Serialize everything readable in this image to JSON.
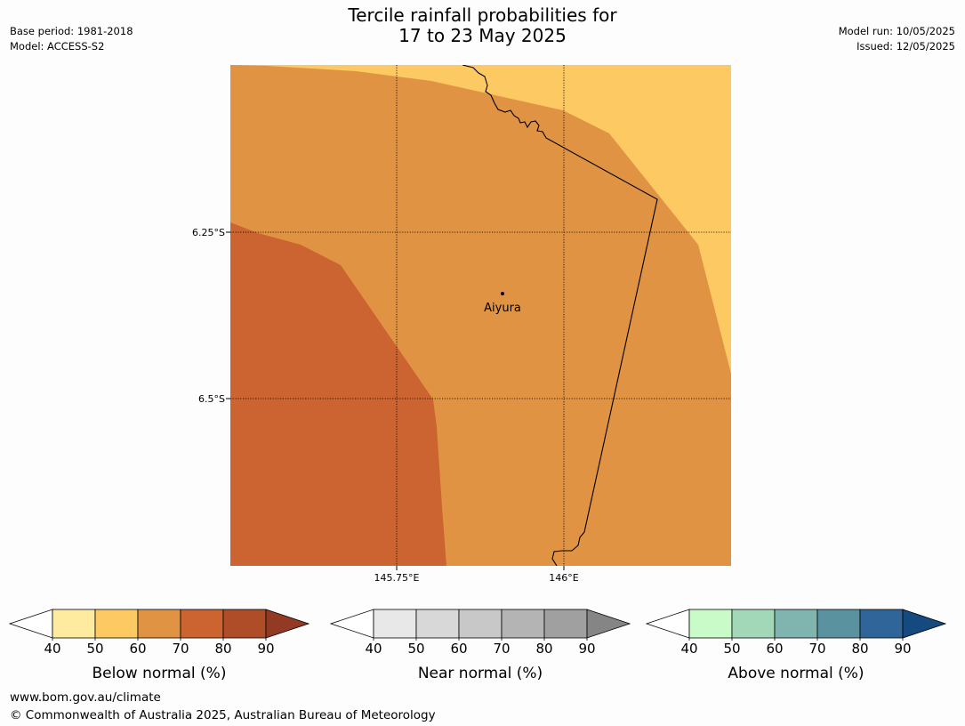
{
  "title_line1": "Tercile rainfall probabilities for",
  "title_line2": "17 to 23 May 2025",
  "meta": {
    "base_period": "Base period: 1981-2018",
    "model": "Model: ACCESS-S2",
    "model_run": "Model run: 10/05/2025",
    "issued": "Issued: 12/05/2025"
  },
  "map": {
    "lat_labels": [
      "6.25°S",
      "6.5°S"
    ],
    "lon_labels": [
      "145.75°E",
      "146°E"
    ],
    "place_name": "Aiyura"
  },
  "colorbars": [
    {
      "label": "Below normal (%)",
      "ticks": [
        "40",
        "50",
        "60",
        "70",
        "80",
        "90"
      ],
      "colors": [
        "#ffeb9f",
        "#fdc962",
        "#e09343",
        "#cb6430",
        "#af4d28",
        "#923a24"
      ]
    },
    {
      "label": "Near normal (%)",
      "ticks": [
        "40",
        "50",
        "60",
        "70",
        "80",
        "90"
      ],
      "colors": [
        "#e8e8e8",
        "#d8d8d8",
        "#c8c8c8",
        "#b4b4b4",
        "#a0a0a0",
        "#858585"
      ]
    },
    {
      "label": "Above normal (%)",
      "ticks": [
        "40",
        "50",
        "60",
        "70",
        "80",
        "90"
      ],
      "colors": [
        "#c9fbc9",
        "#a2d8b8",
        "#80b4ae",
        "#5a92a0",
        "#2f6598",
        "#154a80"
      ]
    }
  ],
  "footer": {
    "url": "www.bom.gov.au/climate",
    "copyright": "© Commonwealth of Australia 2025, Australian Bureau of Meteorology"
  }
}
